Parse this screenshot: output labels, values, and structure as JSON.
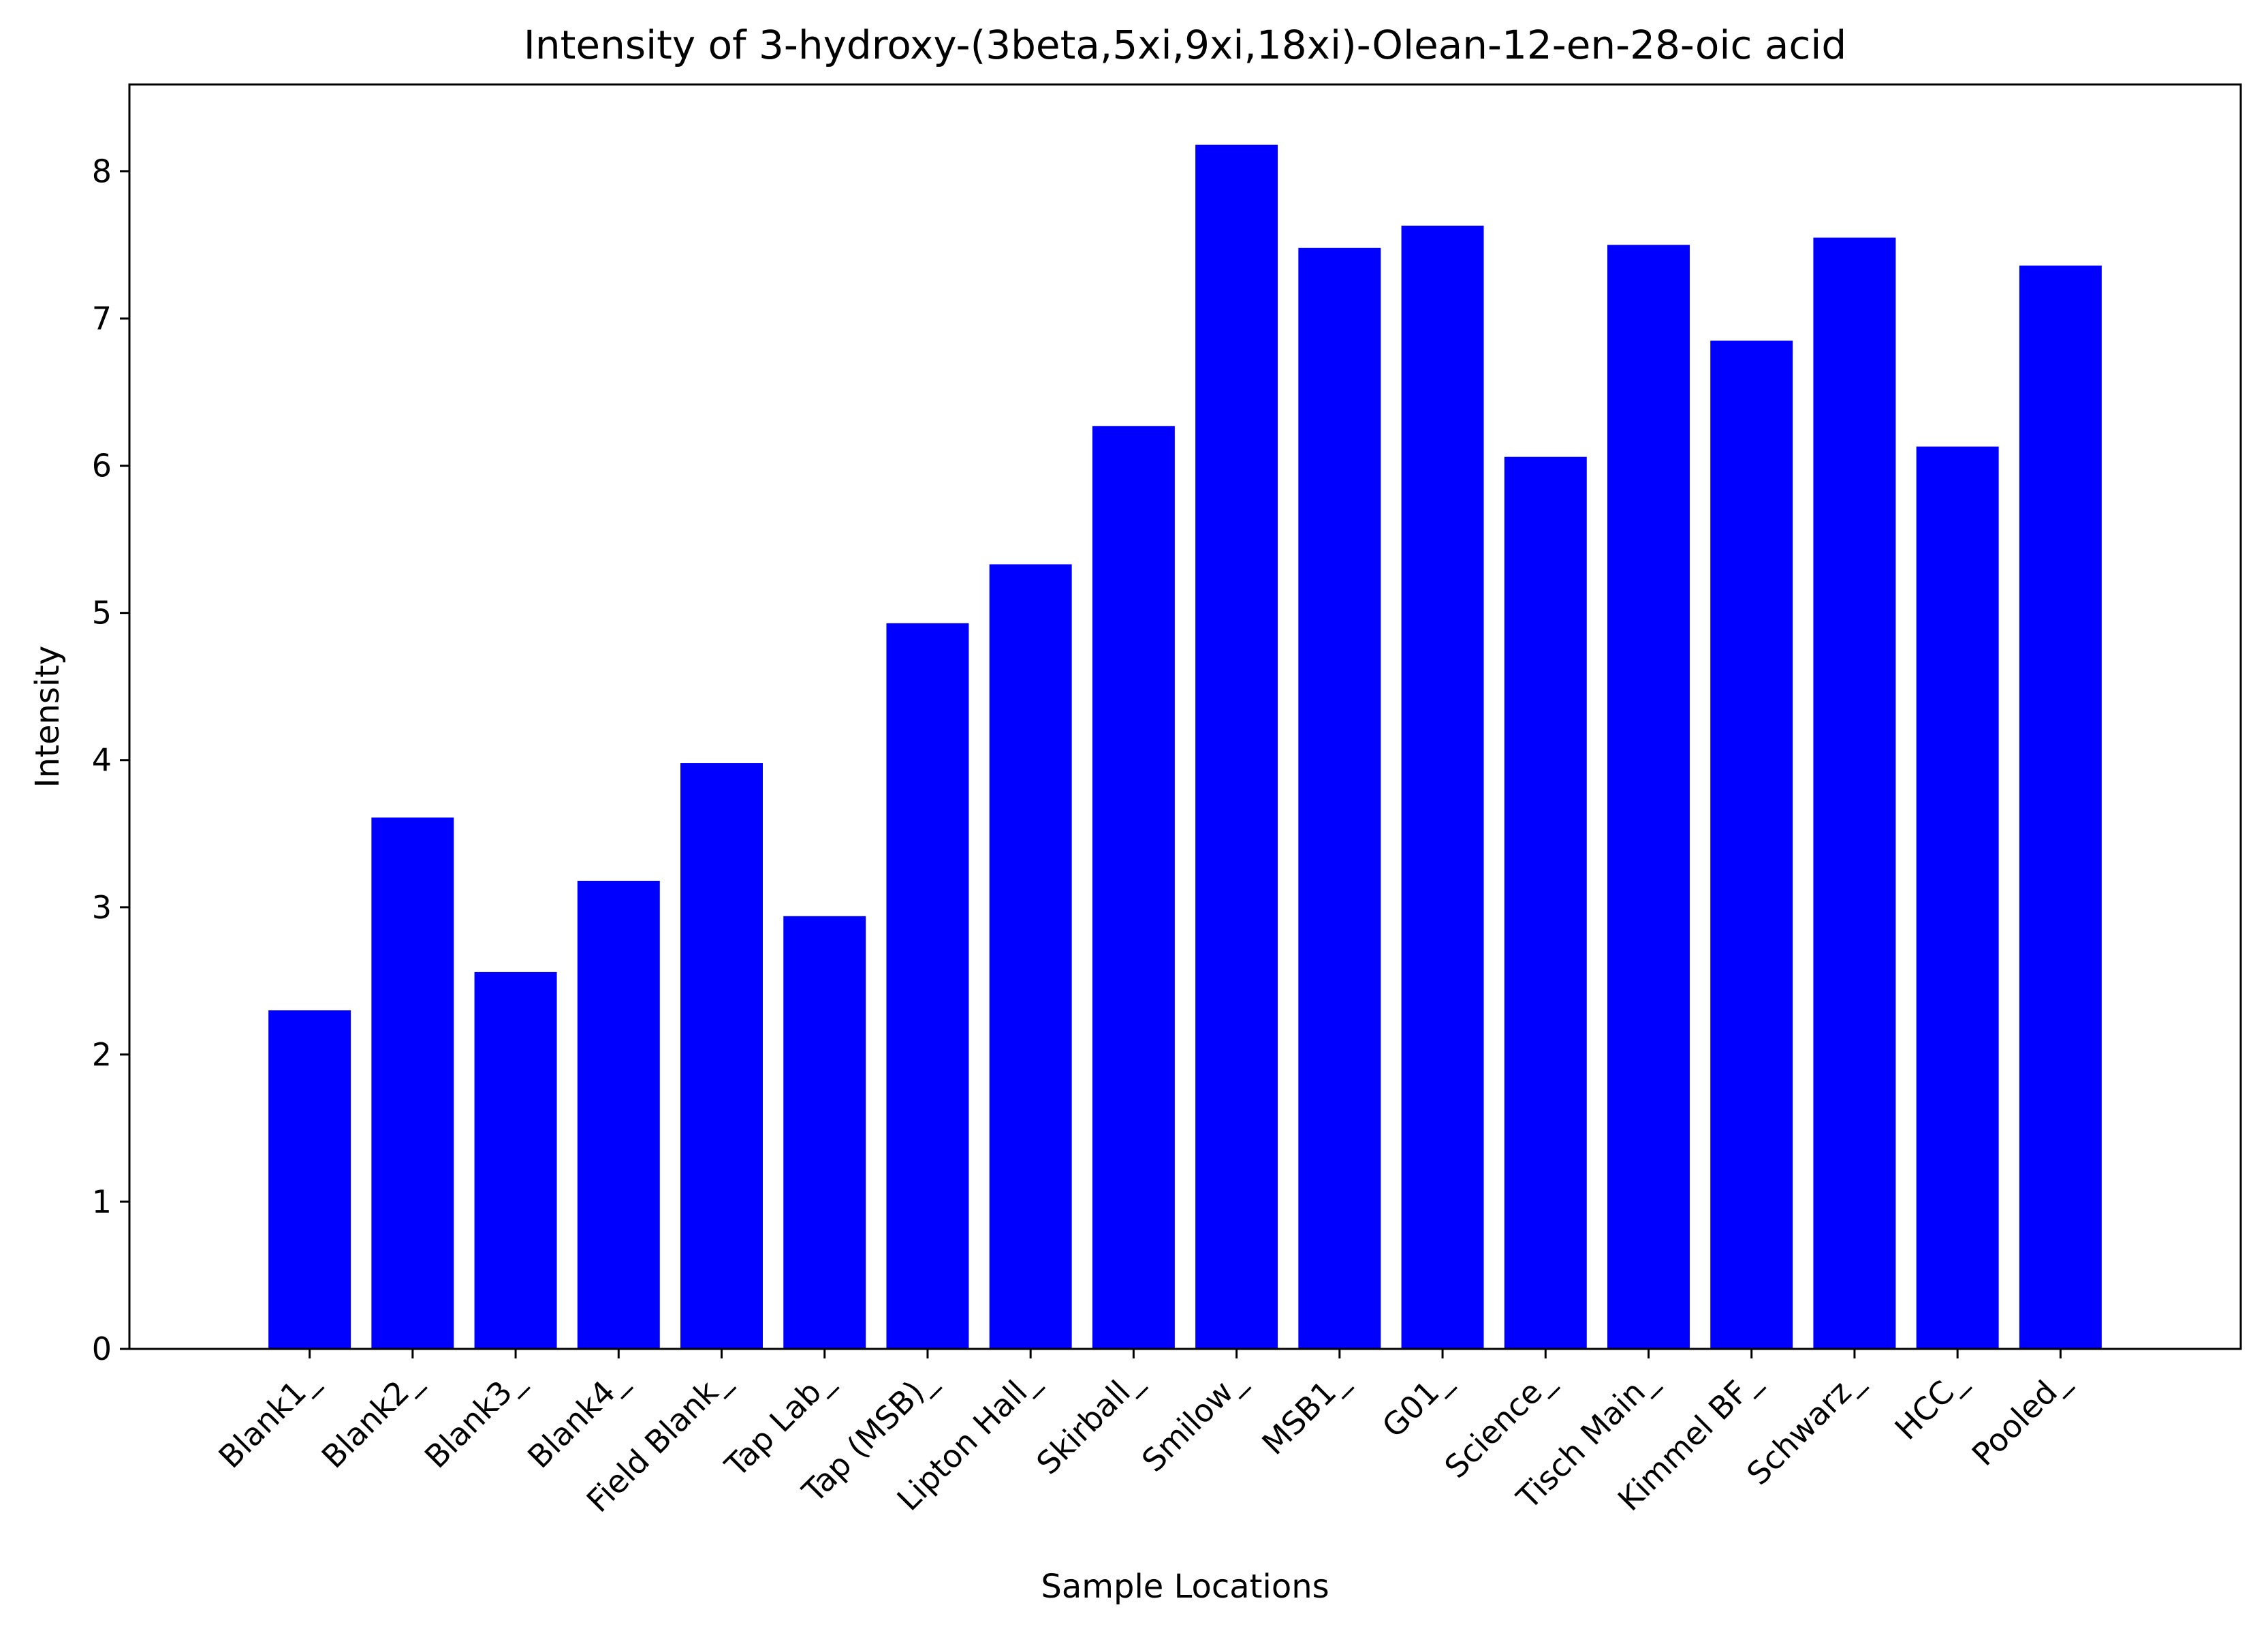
{
  "chart_data": {
    "type": "bar",
    "title": "Intensity of 3-hydroxy-(3beta,5xi,9xi,18xi)-Olean-12-en-28-oic acid",
    "xlabel": "Sample Locations",
    "ylabel": "Intensity",
    "categories": [
      "Blank1_",
      "Blank2_",
      "Blank3_",
      "Blank4_",
      "Field Blank_",
      "Tap Lab_",
      "Tap (MSB)_",
      "Lipton Hall_",
      "Skirball_",
      "Smilow_",
      "MSB1_",
      "G01_",
      "Science_",
      "Tisch Main_",
      "Kimmel BF_",
      "Schwarz_",
      "HCC_",
      "Pooled_"
    ],
    "values": [
      2.3,
      3.61,
      2.56,
      3.18,
      3.98,
      2.94,
      4.93,
      5.33,
      6.27,
      8.18,
      7.48,
      7.63,
      6.06,
      7.5,
      6.85,
      7.55,
      6.13,
      7.36
    ],
    "ylim": [
      0,
      8.59
    ],
    "yticks": [
      0,
      1,
      2,
      3,
      4,
      5,
      6,
      7,
      8
    ],
    "bar_color": "#0000ff",
    "grid": false,
    "legend": "none"
  }
}
